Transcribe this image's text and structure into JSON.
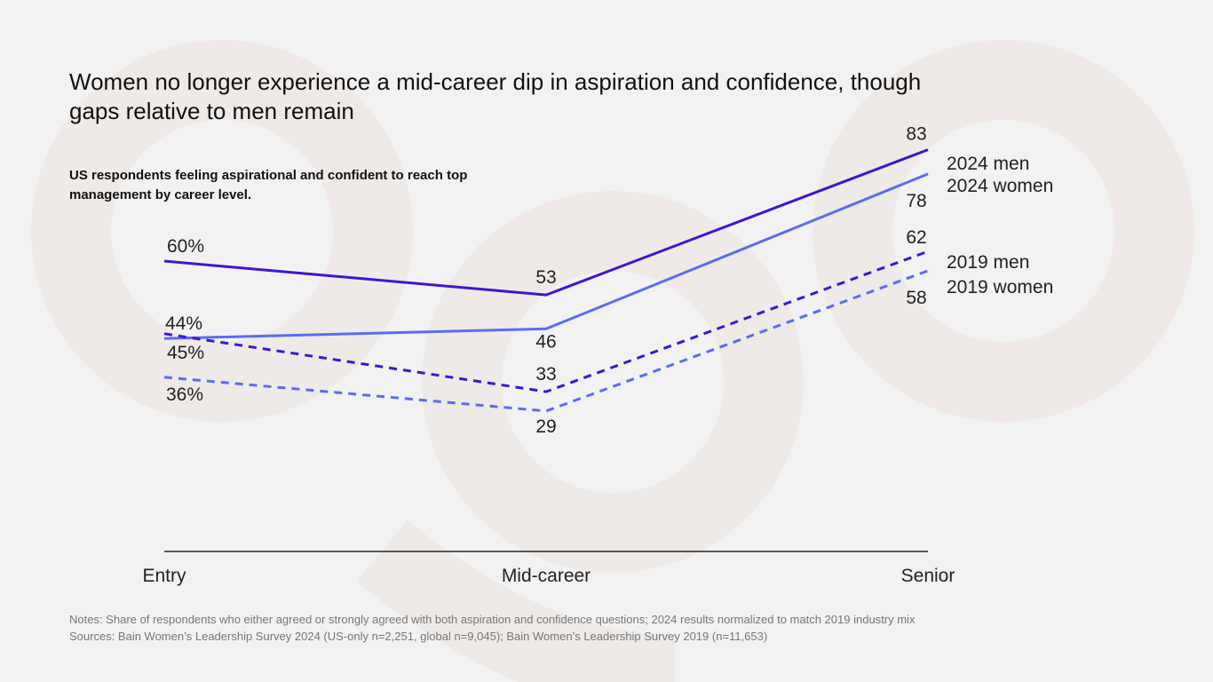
{
  "title": "Women no longer experience a mid-career dip in aspiration and confidence, though gaps relative to men remain",
  "subtitle": "US respondents feeling aspirational and confident to reach top management by career level.",
  "notes": "Notes: Share of respondents who either agreed or strongly agreed with both aspiration and confidence questions; 2024 results normalized to match 2019 industry mix",
  "sources": "Sources: Bain Women’s Leadership Survey 2024 (US-only n=2,251, global n=9,045); Bain Women’s Leadership Survey 2019 (n=11,653)",
  "chart_data": {
    "type": "line",
    "categories": [
      "Entry",
      "Mid-career",
      "Senior"
    ],
    "ylim": [
      0,
      100
    ],
    "grid": false,
    "legend": "direct labels at right",
    "series": [
      {
        "name": "2024 men",
        "values": [
          60,
          53,
          83
        ],
        "labels": [
          "60%",
          "53",
          "83"
        ],
        "color": "#4114d2",
        "dashed": false
      },
      {
        "name": "2024 women",
        "values": [
          44,
          46,
          78
        ],
        "labels": [
          "44%",
          "46",
          "78"
        ],
        "color": "#5b6cf2",
        "dashed": false
      },
      {
        "name": "2019 men",
        "values": [
          45,
          33,
          62
        ],
        "labels": [
          "45%",
          "33",
          "62"
        ],
        "color": "#4114d2",
        "dashed": true
      },
      {
        "name": "2019 women",
        "values": [
          36,
          29,
          58
        ],
        "labels": [
          "36%",
          "29",
          "58"
        ],
        "color": "#5b6cf2",
        "dashed": true
      }
    ]
  }
}
